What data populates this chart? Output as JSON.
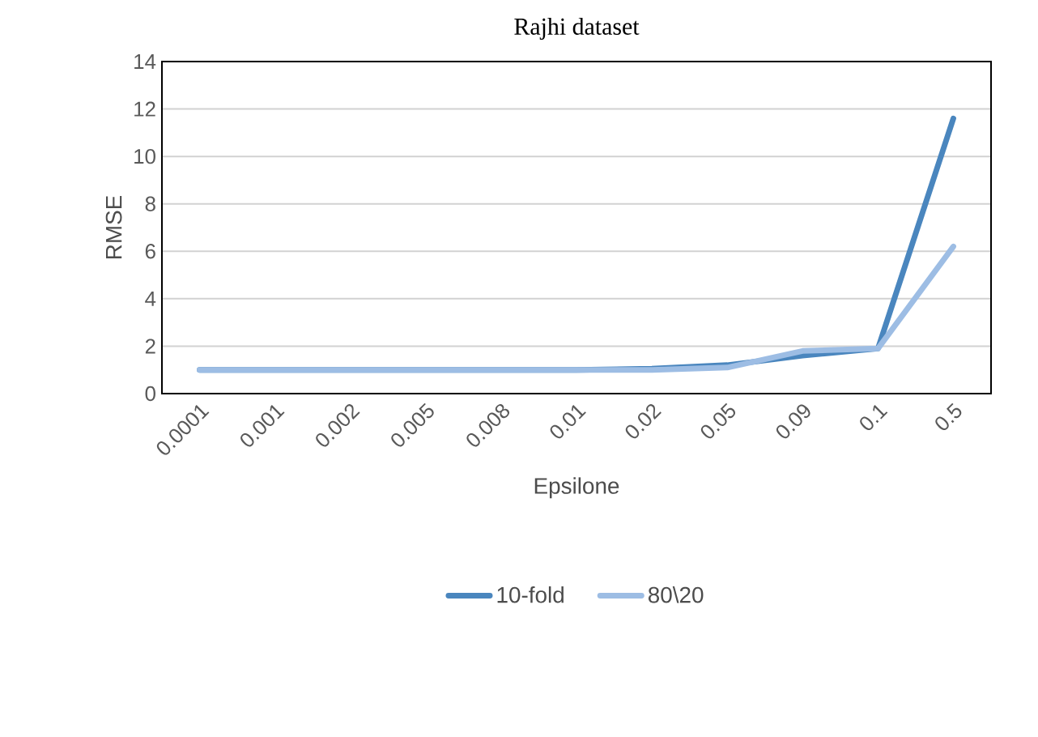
{
  "chart_data": {
    "type": "line",
    "title": "Rajhi dataset",
    "xlabel": "Epsilone",
    "ylabel": "RMSE",
    "categories": [
      "0.0001",
      "0.001",
      "0.002",
      "0.005",
      "0.008",
      "0.01",
      "0.02",
      "0.05",
      "0.09",
      "0.1",
      "0.5"
    ],
    "series": [
      {
        "name": "10-fold",
        "color": "#4a86be",
        "values": [
          1,
          1,
          1,
          1,
          1,
          1,
          1.05,
          1.2,
          1.6,
          1.9,
          11.6
        ]
      },
      {
        "name": "80\\20",
        "color": "#9dbde4",
        "values": [
          1,
          1,
          1,
          1,
          1,
          1,
          1,
          1.1,
          1.8,
          1.9,
          6.2
        ]
      }
    ],
    "ylim": [
      0,
      14
    ],
    "yticks": [
      0,
      2,
      4,
      6,
      8,
      10,
      12,
      14
    ],
    "grid": "y",
    "legend": "bottom"
  }
}
